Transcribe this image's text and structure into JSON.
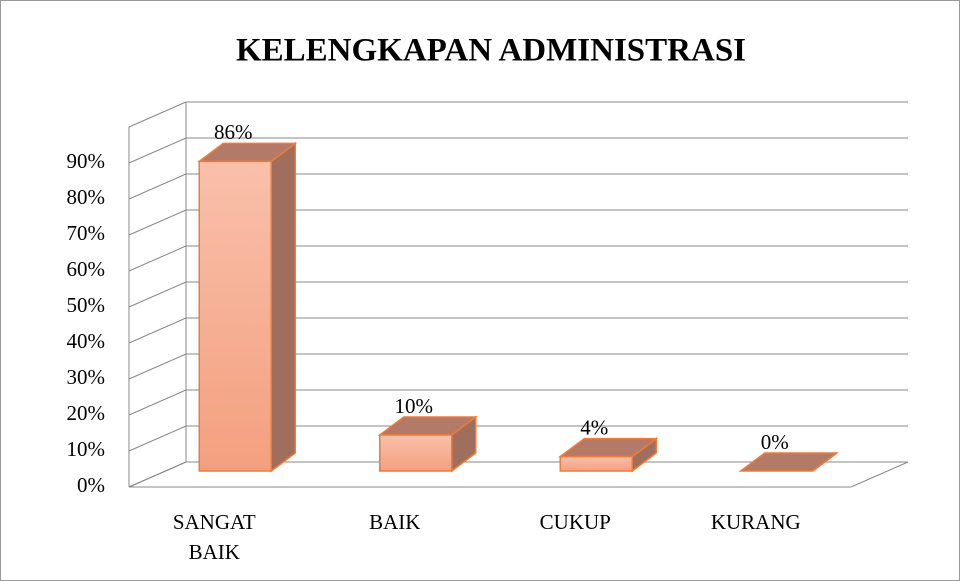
{
  "chart_data": {
    "type": "bar3d",
    "title": "KELENGKAPAN ADMINISTRASI",
    "categories": [
      "SANGAT BAIK",
      "BAIK",
      "CUKUP",
      "KURANG"
    ],
    "values": [
      86,
      10,
      4,
      0
    ],
    "value_labels": [
      "86%",
      "10%",
      "4%",
      "0%"
    ],
    "color": "#f4a583",
    "ylim": [
      0,
      100
    ],
    "yticks": [
      {
        "value": 0,
        "label": "0%"
      },
      {
        "value": 10,
        "label": "10%"
      },
      {
        "value": 20,
        "label": "20%"
      },
      {
        "value": 30,
        "label": "30%"
      },
      {
        "value": 40,
        "label": "40%"
      },
      {
        "value": 50,
        "label": "50%"
      },
      {
        "value": 60,
        "label": "60%"
      },
      {
        "value": 70,
        "label": "70%"
      },
      {
        "value": 80,
        "label": "80%"
      },
      {
        "value": 90,
        "label": "90%"
      }
    ],
    "grid": true
  }
}
